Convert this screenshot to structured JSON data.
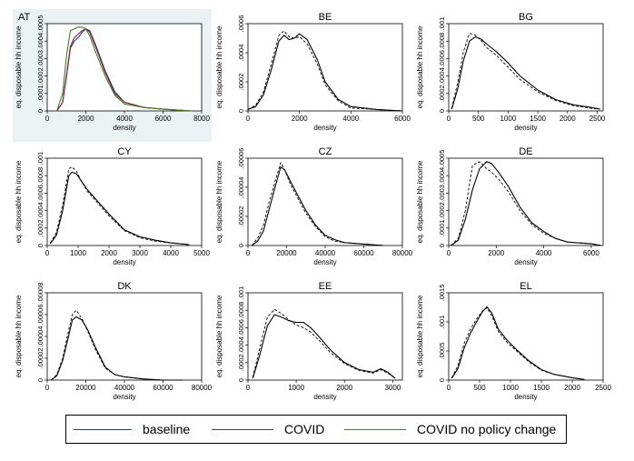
{
  "colors": {
    "baseline": "#1f3d8c",
    "covid": "#8c1f3d",
    "covid_no_policy": "#3f7f1f",
    "first_panel_bg": "#eaf2f3",
    "panel_bg": "#ffffff"
  },
  "legend": {
    "items": [
      {
        "label": "baseline",
        "color": "#1f3d8c"
      },
      {
        "label": "COVID",
        "color": "#8c1f3d"
      },
      {
        "label": "COVID no policy change",
        "color": "#3f7f1f"
      }
    ]
  },
  "chart_data": [
    {
      "type": "line",
      "title": "AT",
      "xlabel": "density",
      "ylabel": "eq. disposable hh income",
      "xlim": [
        0,
        8000
      ],
      "xticks": [
        "0",
        "2000",
        "4000",
        "6000",
        "8000"
      ],
      "ylim": [
        0,
        0.0005
      ],
      "yticks": [
        "0",
        ".0001",
        ".0002",
        ".0003",
        ".0004",
        ".0005"
      ],
      "colored": true,
      "highlighted": true,
      "series": [
        {
          "name": "baseline",
          "x": [
            500,
            800,
            1000,
            1200,
            1400,
            1600,
            1800,
            2000,
            2200,
            2500,
            3000,
            3500,
            4000,
            5000,
            6000,
            7500
          ],
          "y": [
            0,
            5e-05,
            0.0002,
            0.00036,
            0.0004,
            0.00042,
            0.00045,
            0.00047,
            0.00046,
            0.00038,
            0.00023,
            0.00011,
            5e-05,
            2e-05,
            1e-05,
            0
          ]
        },
        {
          "name": "COVID",
          "x": [
            500,
            800,
            1000,
            1200,
            1400,
            1600,
            1800,
            2000,
            2200,
            2500,
            3000,
            3500,
            4000,
            5000,
            6000,
            7500
          ],
          "y": [
            0,
            5e-05,
            0.00021,
            0.00037,
            0.00042,
            0.00044,
            0.00046,
            0.00047,
            0.00045,
            0.00037,
            0.00022,
            0.0001,
            5e-05,
            2e-05,
            1e-05,
            0
          ]
        },
        {
          "name": "COVID no policy change",
          "x": [
            500,
            800,
            1000,
            1200,
            1400,
            1600,
            1800,
            2000,
            2200,
            2500,
            3000,
            3500,
            4000,
            5000,
            6000,
            7500
          ],
          "y": [
            0,
            0.0001,
            0.00032,
            0.00046,
            0.00047,
            0.00048,
            0.00048,
            0.00047,
            0.00043,
            0.00034,
            0.0002,
            9e-05,
            4e-05,
            2e-05,
            1e-05,
            0
          ]
        }
      ]
    },
    {
      "type": "line",
      "title": "BE",
      "xlabel": "density",
      "ylabel": "eq. disposable hh income",
      "xlim": [
        0,
        6000
      ],
      "xticks": [
        "0",
        "2000",
        "4000",
        "6000"
      ],
      "ylim": [
        0,
        0.0006
      ],
      "yticks": [
        "0",
        ".0002",
        ".0004",
        ".0006"
      ],
      "series": [
        {
          "name": "baseline",
          "x": [
            0,
            300,
            600,
            900,
            1200,
            1400,
            1600,
            1800,
            2000,
            2300,
            2700,
            3000,
            3500,
            4000,
            5000,
            6000
          ],
          "y": [
            1e-05,
            3e-05,
            0.00011,
            0.00028,
            0.00048,
            0.00052,
            0.00049,
            0.0005,
            0.00053,
            0.00049,
            0.00035,
            0.0002,
            8e-05,
            3e-05,
            1e-05,
            0
          ]
        },
        {
          "name": "COVID",
          "x": [
            0,
            300,
            600,
            900,
            1200,
            1400,
            1600,
            1800,
            2000,
            2300,
            2700,
            3000,
            3500,
            4000,
            5000,
            6000
          ],
          "y": [
            1e-05,
            4e-05,
            0.00013,
            0.00032,
            0.00052,
            0.00055,
            0.00051,
            0.0005,
            0.00051,
            0.00046,
            0.00032,
            0.00018,
            7e-05,
            2e-05,
            1e-05,
            0
          ]
        }
      ]
    },
    {
      "type": "line",
      "title": "BG",
      "xlabel": "density",
      "ylabel": "eq. disposable hh income",
      "xlim": [
        0,
        2600
      ],
      "xticks": [
        "0",
        "500",
        "1000",
        "1500",
        "2000",
        "2500"
      ],
      "ylim": [
        0,
        0.001
      ],
      "yticks": [
        "0",
        ".0002",
        ".0004",
        ".0006",
        ".0008",
        ".001"
      ],
      "series": [
        {
          "name": "baseline",
          "x": [
            50,
            150,
            250,
            350,
            450,
            550,
            650,
            800,
            1000,
            1200,
            1500,
            1800,
            2100,
            2400,
            2550
          ],
          "y": [
            2e-05,
            0.00025,
            0.00058,
            0.0008,
            0.00085,
            0.00082,
            0.00076,
            0.00068,
            0.00055,
            0.0004,
            0.00024,
            0.00013,
            7e-05,
            4e-05,
            2e-05
          ]
        },
        {
          "name": "COVID",
          "x": [
            50,
            150,
            250,
            350,
            450,
            550,
            650,
            800,
            1000,
            1200,
            1500,
            1800,
            2100,
            2400,
            2550
          ],
          "y": [
            3e-05,
            0.00032,
            0.00068,
            0.00089,
            0.00087,
            0.0008,
            0.00072,
            0.00064,
            0.0005,
            0.00036,
            0.00022,
            0.00012,
            6e-05,
            3e-05,
            2e-05
          ]
        }
      ]
    },
    {
      "type": "line",
      "title": "CY",
      "xlabel": "density",
      "ylabel": "eq. disposable hh income",
      "xlim": [
        0,
        5000
      ],
      "xticks": [
        "0",
        "1000",
        "2000",
        "3000",
        "4000",
        "5000"
      ],
      "ylim": [
        0,
        0.001
      ],
      "yticks": [
        "0",
        ".0002",
        ".0004",
        ".0006",
        ".0008",
        ".001"
      ],
      "series": [
        {
          "name": "baseline",
          "x": [
            100,
            300,
            500,
            700,
            800,
            950,
            1100,
            1300,
            1600,
            2000,
            2500,
            3000,
            3500,
            4000,
            4600
          ],
          "y": [
            2e-05,
            0.00012,
            0.0004,
            0.0008,
            0.00084,
            0.00082,
            0.00074,
            0.00064,
            0.00052,
            0.00036,
            0.00018,
            0.0001,
            6e-05,
            3e-05,
            1e-05
          ]
        },
        {
          "name": "COVID",
          "x": [
            100,
            300,
            500,
            700,
            800,
            950,
            1100,
            1300,
            1600,
            2000,
            2500,
            3000,
            3500,
            4000,
            4600
          ],
          "y": [
            3e-05,
            0.00015,
            0.00047,
            0.00088,
            0.0009,
            0.00085,
            0.00074,
            0.00062,
            0.0005,
            0.00034,
            0.00017,
            9e-05,
            5e-05,
            3e-05,
            1e-05
          ]
        }
      ]
    },
    {
      "type": "line",
      "title": "CZ",
      "xlabel": "density",
      "ylabel": "eq. disposable hh income",
      "xlim": [
        0,
        80000
      ],
      "xticks": [
        "0",
        "20000",
        "40000",
        "60000",
        "80000"
      ],
      "ylim": [
        0,
        6e-05
      ],
      "yticks": [
        "0",
        ".00002",
        ".00004",
        ".00006"
      ],
      "series": [
        {
          "name": "baseline",
          "x": [
            2000,
            5000,
            8000,
            11000,
            14000,
            17000,
            19000,
            22000,
            26000,
            30000,
            35000,
            40000,
            45000,
            50000,
            60000,
            70000
          ],
          "y": [
            0,
            3e-06,
            1e-05,
            2.5e-05,
            4e-05,
            5.4e-05,
            5.2e-05,
            4.4e-05,
            3.4e-05,
            2.4e-05,
            1.4e-05,
            7e-06,
            4e-06,
            2e-06,
            1e-06,
            0
          ]
        },
        {
          "name": "COVID",
          "x": [
            2000,
            5000,
            8000,
            11000,
            14000,
            17000,
            19000,
            22000,
            26000,
            30000,
            35000,
            40000,
            45000,
            50000,
            60000,
            70000
          ],
          "y": [
            0,
            5e-06,
            1.4e-05,
            3e-05,
            4.4e-05,
            5.7e-05,
            5.2e-05,
            4.2e-05,
            3.2e-05,
            2.2e-05,
            1.3e-05,
            6e-06,
            3e-06,
            2e-06,
            1e-06,
            0
          ]
        }
      ]
    },
    {
      "type": "line",
      "title": "DE",
      "xlabel": "density",
      "ylabel": "eq. disposable hh income",
      "xlim": [
        0,
        6500
      ],
      "xticks": [
        "0",
        "2000",
        "4000",
        "6000"
      ],
      "ylim": [
        0,
        0.0005
      ],
      "yticks": [
        "0",
        ".0001",
        ".0002",
        ".0003",
        ".0004",
        ".0005"
      ],
      "series": [
        {
          "name": "baseline",
          "x": [
            100,
            400,
            700,
            1000,
            1300,
            1600,
            1800,
            2100,
            2500,
            3000,
            3500,
            4000,
            4500,
            5000,
            6000,
            6400
          ],
          "y": [
            0,
            3e-05,
            0.00015,
            0.00032,
            0.00044,
            0.00048,
            0.00047,
            0.00042,
            0.00034,
            0.00022,
            0.00013,
            8e-05,
            4e-05,
            2e-05,
            1e-05,
            0
          ]
        },
        {
          "name": "COVID",
          "x": [
            100,
            400,
            700,
            1000,
            1300,
            1600,
            1800,
            2100,
            2500,
            3000,
            3500,
            4000,
            4500,
            5000,
            6000,
            6400
          ],
          "y": [
            0,
            4e-05,
            0.0002,
            0.00046,
            0.00048,
            0.00044,
            0.00042,
            0.00038,
            0.00031,
            0.0002,
            0.00012,
            7e-05,
            4e-05,
            2e-05,
            1e-05,
            0
          ]
        }
      ]
    },
    {
      "type": "line",
      "title": "DK",
      "xlabel": "density",
      "ylabel": "eq. disposable hh income",
      "xlim": [
        0,
        80000
      ],
      "xticks": [
        "0",
        "20000",
        "40000",
        "60000",
        "80000"
      ],
      "ylim": [
        0,
        8e-05
      ],
      "yticks": [
        "0",
        ".00002",
        ".00004",
        ".00006",
        ".00008"
      ],
      "series": [
        {
          "name": "baseline",
          "x": [
            2000,
            5000,
            8000,
            11000,
            13000,
            15000,
            18000,
            21000,
            25000,
            30000,
            35000,
            40000,
            50000,
            60000,
            70000
          ],
          "y": [
            0,
            4e-06,
            1.8e-05,
            4e-05,
            5.5e-05,
            5.8e-05,
            5.5e-05,
            4.6e-05,
            3e-05,
            1.2e-05,
            5e-06,
            3e-06,
            1e-06,
            0,
            0
          ]
        },
        {
          "name": "COVID",
          "x": [
            2000,
            5000,
            8000,
            11000,
            13000,
            15000,
            18000,
            21000,
            25000,
            30000,
            35000,
            40000,
            50000,
            60000,
            70000
          ],
          "y": [
            0,
            5e-06,
            2e-05,
            4.5e-05,
            6e-05,
            6.4e-05,
            5.6e-05,
            4.5e-05,
            2.8e-05,
            1.1e-05,
            5e-06,
            3e-06,
            1e-06,
            0,
            0
          ]
        }
      ]
    },
    {
      "type": "line",
      "title": "EE",
      "xlabel": "density",
      "ylabel": "eq. disposable hh income",
      "xlim": [
        0,
        3200
      ],
      "xticks": [
        "0",
        "1000",
        "2000",
        "3000"
      ],
      "ylim": [
        0,
        0.001
      ],
      "yticks": [
        "0",
        ".0002",
        ".0004",
        ".0006",
        ".0008",
        ".001"
      ],
      "series": [
        {
          "name": "baseline",
          "x": [
            100,
            250,
            400,
            550,
            700,
            850,
            1000,
            1150,
            1300,
            1500,
            1700,
            2000,
            2300,
            2600,
            2750,
            2900,
            3050
          ],
          "y": [
            2e-05,
            0.0003,
            0.00062,
            0.00075,
            0.00072,
            0.00068,
            0.00066,
            0.00066,
            0.0006,
            0.00048,
            0.00035,
            0.0002,
            0.00012,
            9e-05,
            0.00013,
            9e-05,
            2e-05
          ]
        },
        {
          "name": "COVID",
          "x": [
            100,
            250,
            400,
            550,
            700,
            850,
            1000,
            1150,
            1300,
            1500,
            1700,
            2000,
            2300,
            2600,
            2750,
            2900,
            3050
          ],
          "y": [
            3e-05,
            0.00038,
            0.00072,
            0.00081,
            0.00076,
            0.00069,
            0.00063,
            0.0006,
            0.00055,
            0.00044,
            0.00032,
            0.00019,
            0.00011,
            8e-05,
            0.00012,
            8e-05,
            2e-05
          ]
        }
      ]
    },
    {
      "type": "line",
      "title": "EL",
      "xlabel": "density",
      "ylabel": "eq. disposable hh income",
      "xlim": [
        0,
        2500
      ],
      "xticks": [
        "0",
        "500",
        "1000",
        "1500",
        "2000",
        "2500"
      ],
      "ylim": [
        0,
        0.0015
      ],
      "yticks": [
        "0",
        ".0005",
        ".001",
        ".0015"
      ],
      "series": [
        {
          "name": "baseline",
          "x": [
            50,
            150,
            250,
            350,
            450,
            550,
            620,
            700,
            800,
            950,
            1100,
            1300,
            1500,
            1700,
            2000,
            2200
          ],
          "y": [
            3e-05,
            0.0002,
            0.00055,
            0.0008,
            0.001,
            0.00118,
            0.00126,
            0.00115,
            0.00088,
            0.00068,
            0.00052,
            0.00033,
            0.00018,
            0.0001,
            4e-05,
            1e-05
          ]
        },
        {
          "name": "COVID",
          "x": [
            50,
            150,
            250,
            350,
            450,
            550,
            620,
            700,
            800,
            950,
            1100,
            1300,
            1500,
            1700,
            2000,
            2200
          ],
          "y": [
            4e-05,
            0.00025,
            0.00063,
            0.00087,
            0.00105,
            0.00119,
            0.00124,
            0.0011,
            0.00084,
            0.00064,
            0.0005,
            0.00031,
            0.00017,
            0.0001,
            4e-05,
            1e-05
          ]
        }
      ]
    }
  ]
}
